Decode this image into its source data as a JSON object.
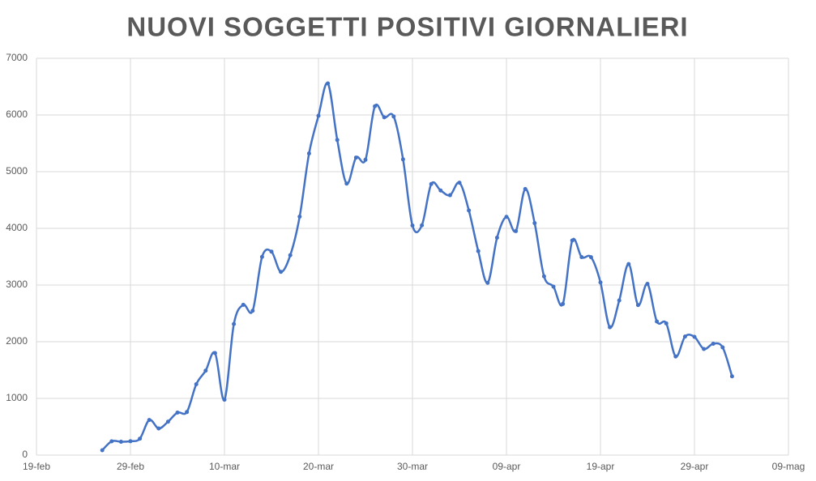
{
  "chart_data": {
    "type": "line",
    "title": "NUOVI SOGGETTI POSITIVI GIORNALIERI",
    "x": [
      "26-feb",
      "27-feb",
      "28-feb",
      "29-feb",
      "01-mar",
      "02-mar",
      "03-mar",
      "04-mar",
      "05-mar",
      "06-mar",
      "07-mar",
      "08-mar",
      "09-mar",
      "10-mar",
      "11-mar",
      "12-mar",
      "13-mar",
      "14-mar",
      "15-mar",
      "16-mar",
      "17-mar",
      "18-mar",
      "19-mar",
      "20-mar",
      "21-mar",
      "22-mar",
      "23-mar",
      "24-mar",
      "25-mar",
      "26-mar",
      "27-mar",
      "28-mar",
      "29-mar",
      "30-mar",
      "31-mar",
      "01-apr",
      "02-apr",
      "03-apr",
      "04-apr",
      "05-apr",
      "06-apr",
      "07-apr",
      "08-apr",
      "09-apr",
      "10-apr",
      "11-apr",
      "12-apr",
      "13-apr",
      "14-apr",
      "15-apr",
      "16-apr",
      "17-apr",
      "18-apr",
      "19-apr",
      "20-apr",
      "21-apr",
      "22-apr",
      "23-apr",
      "24-apr",
      "25-apr",
      "26-apr",
      "27-apr",
      "28-apr",
      "29-apr",
      "30-apr",
      "01-mag",
      "02-mag",
      "03-mag"
    ],
    "series": [
      {
        "color": "#4472c4",
        "values": [
          86,
          243,
          235,
          245,
          290,
          620,
          470,
          590,
          750,
          760,
          1250,
          1490,
          1800,
          977,
          2313,
          2651,
          2547,
          3497,
          3590,
          3233,
          3526,
          4207,
          5322,
          5986,
          6557,
          5560,
          4789,
          5249,
          5210,
          6153,
          5959,
          5974,
          5217,
          4050,
          4053,
          4782,
          4668,
          4585,
          4805,
          4316,
          3599,
          3039,
          3836,
          4204,
          3951,
          4694,
          4092,
          3153,
          2972,
          2667,
          3786,
          3493,
          3491,
          3047,
          2256,
          2729,
          3370,
          2646,
          3021,
          2357,
          2324,
          1739,
          2091,
          2086,
          1872,
          1965,
          1900,
          1389
        ]
      }
    ],
    "xlim": [
      "19-feb",
      "09-mag"
    ],
    "xticks": [
      "19-feb",
      "29-feb",
      "10-mar",
      "20-mar",
      "30-mar",
      "09-apr",
      "19-apr",
      "29-apr",
      "09-mag"
    ],
    "ylim": [
      0,
      7000
    ],
    "yticks": [
      0,
      1000,
      2000,
      3000,
      4000,
      5000,
      6000,
      7000
    ],
    "grid": true,
    "smooth": true
  }
}
